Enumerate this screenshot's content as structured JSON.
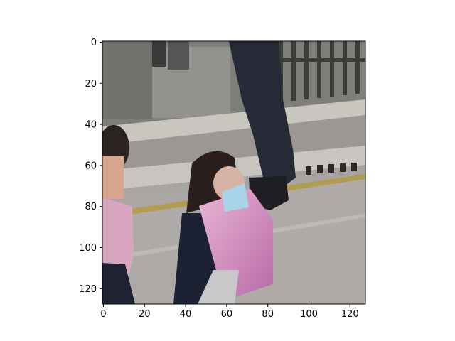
{
  "figure": {
    "image_description_icon": "street-scene-photo",
    "x_ticks": [
      "0",
      "20",
      "40",
      "60",
      "80",
      "100",
      "120"
    ],
    "y_ticks": [
      "0",
      "20",
      "40",
      "60",
      "80",
      "100",
      "120"
    ],
    "x_tick_values": [
      0,
      20,
      40,
      60,
      80,
      100,
      120
    ],
    "y_tick_values": [
      0,
      20,
      40,
      60,
      80,
      100,
      120
    ],
    "xlim": [
      -0.5,
      127.5
    ],
    "ylim": [
      127.5,
      -0.5
    ]
  }
}
